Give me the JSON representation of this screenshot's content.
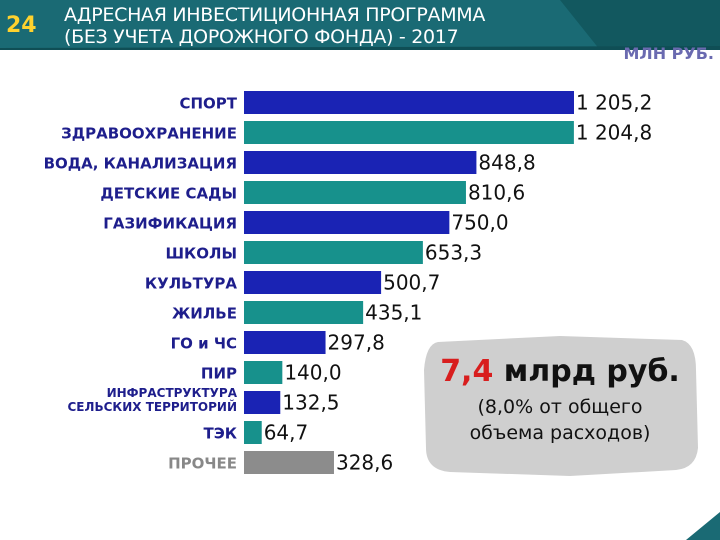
{
  "header": {
    "page_number": "24",
    "title_line1": "АДРЕСНАЯ ИНВЕСТИЦИОННАЯ ПРОГРАММА",
    "title_line2": "(БЕЗ УЧЕТА ДОРОЖНОГО ФОНДА) - 2017",
    "unit": "МЛН РУБ.",
    "colors": {
      "band": "#1a6a74",
      "band_dark": "#12585f",
      "page_number": "#ffd22e"
    }
  },
  "chart_data": {
    "type": "bar",
    "orientation": "horizontal",
    "categories": [
      "СПОРТ",
      "ЗДРАВООХРАНЕНИЕ",
      "ВОДА, КАНАЛИЗАЦИЯ",
      "ДЕТСКИЕ САДЫ",
      "ГАЗИФИКАЦИЯ",
      "ШКОЛЫ",
      "КУЛЬТУРА",
      "ЖИЛЬЕ",
      "ГО и ЧС",
      "ПИР",
      "ИНФРАСТРУКТУРА СЕЛЬСКИХ ТЕРРИТОРИЙ",
      "ТЭК",
      "ПРОЧЕЕ"
    ],
    "category_lines": [
      [
        "СПОРТ"
      ],
      [
        "ЗДРАВООХРАНЕНИЕ"
      ],
      [
        "ВОДА, КАНАЛИЗАЦИЯ"
      ],
      [
        "ДЕТСКИЕ САДЫ"
      ],
      [
        "ГАЗИФИКАЦИЯ"
      ],
      [
        "ШКОЛЫ"
      ],
      [
        "КУЛЬТУРА"
      ],
      [
        "ЖИЛЬЕ"
      ],
      [
        "ГО и ЧС"
      ],
      [
        "ПИР"
      ],
      [
        "ИНФРАСТРУКТУРА",
        "СЕЛЬСКИХ ТЕРРИТОРИЙ"
      ],
      [
        "ТЭК"
      ],
      [
        "ПРОЧЕЕ"
      ]
    ],
    "values": [
      1205.2,
      1204.8,
      848.8,
      810.6,
      750.0,
      653.3,
      500.7,
      435.1,
      297.8,
      140.0,
      132.5,
      64.7,
      328.6
    ],
    "value_labels": [
      "1 205,2",
      "1 204,8",
      "848,8",
      "810,6",
      "750,0",
      "653,3",
      "500,7",
      "435,1",
      "297,8",
      "140,0",
      "132,5",
      "64,7",
      "328,6"
    ],
    "bar_colors": [
      "#1a23b4",
      "#17918c",
      "#1a23b4",
      "#17918c",
      "#1a23b4",
      "#17918c",
      "#1a23b4",
      "#17918c",
      "#1a23b4",
      "#17918c",
      "#1a23b4",
      "#17918c",
      "#8c8c8c"
    ],
    "xlim": [
      0,
      1205.2
    ],
    "grid": false,
    "legend": "none"
  },
  "callout": {
    "amount": "7,4",
    "amount_unit": " млрд руб.",
    "line2": "(8,0% от общего",
    "line3": "объема расходов)",
    "colors": {
      "accent": "#d81e1e",
      "bubble": "#cfcfcf"
    }
  }
}
